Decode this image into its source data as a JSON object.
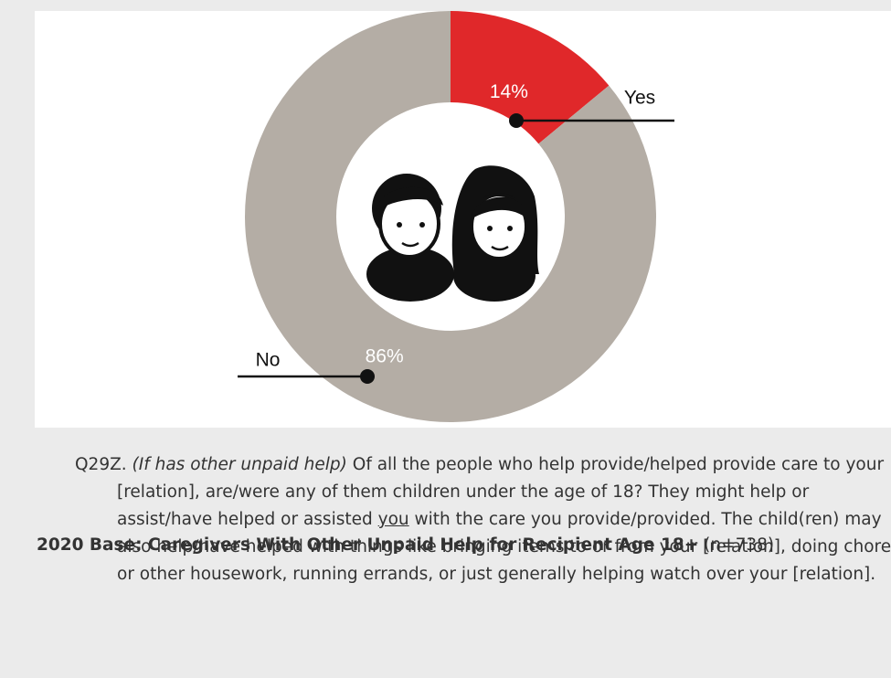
{
  "chart_data": {
    "type": "pie",
    "donut": true,
    "categories": [
      "Yes",
      "No"
    ],
    "values": [
      14,
      86
    ],
    "value_labels": [
      "14%",
      "86%"
    ],
    "colors": [
      "#e0282a",
      "#b4ada5"
    ]
  },
  "question": {
    "label": "Q29Z.",
    "condition": "(If has other unpaid help)",
    "text_before": "Of all the people who help provide/helped provide care to your [relation], are/were any of them children under the age of 18? They might help or assist/have helped or assisted",
    "underlined": "you",
    "text_after": "with the care you provide/provided. The child(ren) may also help/have helped with things like bringing items to or from your [relation], doing chores or other housework, running errands, or just generally helping watch over your [relation]."
  },
  "base": {
    "label": "2020 Base: Caregivers With Other Unpaid Help for Recipient Age 18+",
    "n": "(n=738)"
  }
}
